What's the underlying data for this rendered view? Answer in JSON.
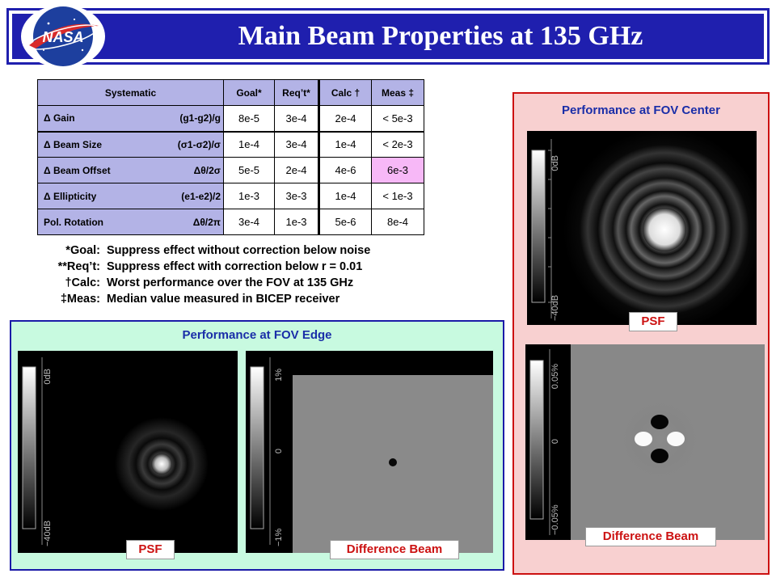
{
  "title": "Main Beam Properties at 135 GHz",
  "logo_text": "NASA",
  "table": {
    "headers": [
      "Systematic",
      "Goal*",
      "Req’t*",
      "Calc †",
      "Meas ‡"
    ],
    "rows": [
      {
        "name": "Δ Gain",
        "formula": "(g1-g2)/g",
        "goal": "8e-5",
        "req": "3e-4",
        "calc": "2e-4",
        "meas": "< 5e-3"
      },
      {
        "name": "Δ Beam Size",
        "formula": "(σ1-σ2)/σ",
        "goal": "1e-4",
        "req": "3e-4",
        "calc": "1e-4",
        "meas": "< 2e-3"
      },
      {
        "name": "Δ Beam Offset",
        "formula": "Δθ/2σ",
        "goal": "5e-5",
        "req": "2e-4",
        "calc": "4e-6",
        "meas": "6e-3"
      },
      {
        "name": "Δ Ellipticity",
        "formula": "(e1-e2)/2",
        "goal": "1e-3",
        "req": "3e-3",
        "calc": "1e-4",
        "meas": "< 1e-3"
      },
      {
        "name": "Pol. Rotation",
        "formula": "Δθ/2π",
        "goal": "3e-4",
        "req": "1e-3",
        "calc": "5e-6",
        "meas": "8e-4"
      }
    ]
  },
  "notes": [
    {
      "key": "*Goal:",
      "text": "Suppress effect without correction below noise"
    },
    {
      "key": "**Req’t:",
      "text": "Suppress effect with correction below r = 0.01"
    },
    {
      "key": "†Calc:",
      "text": "Worst performance over the FOV at 135 GHz"
    },
    {
      "key": "‡Meas:",
      "text": "Median value measured in BICEP receiver"
    }
  ],
  "panel_center": {
    "title": "Performance at FOV Center",
    "psf_label": "PSF",
    "diff_label": "Difference Beam",
    "psf_scale": {
      "top": "0dB",
      "bottom": "−40dB"
    },
    "diff_scale": {
      "top": "0.05%",
      "mid": "0",
      "bottom": "−0.05%"
    }
  },
  "panel_edge": {
    "title": "Performance at FOV Edge",
    "psf_label": "PSF",
    "diff_label": "Difference Beam",
    "psf_scale": {
      "top": "0dB",
      "bottom": "−40dB"
    },
    "diff_scale": {
      "top": "1%",
      "mid": "0",
      "bottom": "−1%"
    }
  },
  "colors": {
    "title_bar": "#1f1fae",
    "table_header": "#b3b3e6",
    "highlight": "#f7b8f7",
    "center_panel_bg": "#f8d0d0",
    "edge_panel_bg": "#c8fae0",
    "label_text": "#cc1111"
  }
}
